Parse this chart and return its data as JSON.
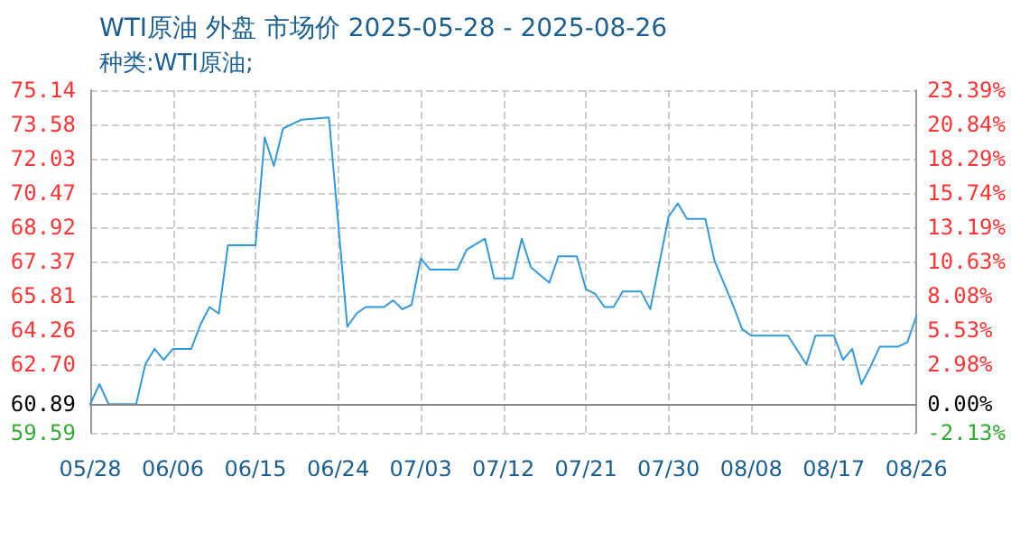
{
  "chart_data": {
    "type": "line",
    "title": "WTI原油 外盘 市场价 2025-05-28 - 2025-08-26",
    "subtitle": "种类:WTI原油;",
    "x": [
      "2025-05-28",
      "2025-05-29",
      "2025-05-30",
      "2025-06-02",
      "2025-06-03",
      "2025-06-04",
      "2025-06-05",
      "2025-06-06",
      "2025-06-08",
      "2025-06-09",
      "2025-06-10",
      "2025-06-11",
      "2025-06-12",
      "2025-06-15",
      "2025-06-16",
      "2025-06-17",
      "2025-06-18",
      "2025-06-19",
      "2025-06-20",
      "2025-06-23",
      "2025-06-25",
      "2025-06-26",
      "2025-06-27",
      "2025-06-29",
      "2025-06-30",
      "2025-07-01",
      "2025-07-02",
      "2025-07-03",
      "2025-07-04",
      "2025-07-07",
      "2025-07-08",
      "2025-07-10",
      "2025-07-11",
      "2025-07-13",
      "2025-07-14",
      "2025-07-15",
      "2025-07-17",
      "2025-07-18",
      "2025-07-20",
      "2025-07-21",
      "2025-07-22",
      "2025-07-23",
      "2025-07-24",
      "2025-07-25",
      "2025-07-27",
      "2025-07-28",
      "2025-07-30",
      "2025-07-31",
      "2025-08-01",
      "2025-08-03",
      "2025-08-04",
      "2025-08-06",
      "2025-08-07",
      "2025-08-08",
      "2025-08-12",
      "2025-08-14",
      "2025-08-15",
      "2025-08-17",
      "2025-08-18",
      "2025-08-19",
      "2025-08-20",
      "2025-08-21",
      "2025-08-22",
      "2025-08-24",
      "2025-08-25",
      "2025-08-26"
    ],
    "series": [
      {
        "color": "#3399dd",
        "values": [
          60.89,
          61.8,
          60.89,
          60.89,
          62.7,
          63.4,
          62.9,
          63.4,
          63.4,
          64.5,
          65.3,
          65.0,
          68.1,
          68.1,
          73.0,
          71.7,
          73.4,
          73.6,
          73.8,
          73.9,
          64.4,
          65.0,
          65.3,
          65.3,
          65.6,
          65.2,
          65.4,
          67.5,
          67.0,
          67.0,
          67.9,
          68.4,
          66.6,
          66.6,
          68.4,
          67.1,
          66.4,
          67.6,
          67.6,
          66.1,
          65.9,
          65.3,
          65.3,
          66.0,
          66.0,
          65.2,
          69.4,
          70.0,
          69.3,
          69.3,
          67.4,
          65.4,
          64.3,
          64.0,
          64.0,
          62.7,
          64.0,
          64.0,
          62.9,
          63.4,
          61.8,
          62.6,
          63.5,
          63.5,
          63.7,
          64.9
        ]
      }
    ],
    "xlim": [
      "2025-05-28",
      "2025-08-26"
    ],
    "xticks": [
      {
        "value": "2025-05-28",
        "label": "05/28"
      },
      {
        "value": "2025-06-06",
        "label": "06/06"
      },
      {
        "value": "2025-06-15",
        "label": "06/15"
      },
      {
        "value": "2025-06-24",
        "label": "06/24"
      },
      {
        "value": "2025-07-03",
        "label": "07/03"
      },
      {
        "value": "2025-07-12",
        "label": "07/12"
      },
      {
        "value": "2025-07-21",
        "label": "07/21"
      },
      {
        "value": "2025-07-30",
        "label": "07/30"
      },
      {
        "value": "2025-08-08",
        "label": "08/08"
      },
      {
        "value": "2025-08-17",
        "label": "08/17"
      },
      {
        "value": "2025-08-26",
        "label": "08/26"
      }
    ],
    "ylim": [
      59.59,
      75.14
    ],
    "yticks": [
      {
        "value": 59.59,
        "label": "59.59"
      },
      {
        "value": 60.89,
        "label": "60.89"
      },
      {
        "value": 62.7,
        "label": "62.70"
      },
      {
        "value": 64.26,
        "label": "64.26"
      },
      {
        "value": 65.81,
        "label": "65.81"
      },
      {
        "value": 67.37,
        "label": "67.37"
      },
      {
        "value": 68.92,
        "label": "68.92"
      },
      {
        "value": 70.47,
        "label": "70.47"
      },
      {
        "value": 72.03,
        "label": "72.03"
      },
      {
        "value": 73.58,
        "label": "73.58"
      },
      {
        "value": 75.14,
        "label": "75.14"
      }
    ],
    "y2lim": [
      -2.13,
      23.39
    ],
    "y2ticks": [
      {
        "value": -2.13,
        "label": "-2.13%"
      },
      {
        "value": 0,
        "label": "0.00%"
      },
      {
        "value": 2.98,
        "label": "2.98%"
      },
      {
        "value": 5.53,
        "label": "5.53%"
      },
      {
        "value": 8.08,
        "label": "8.08%"
      },
      {
        "value": 10.63,
        "label": "10.63%"
      },
      {
        "value": 13.19,
        "label": "13.19%"
      },
      {
        "value": 15.74,
        "label": "15.74%"
      },
      {
        "value": 18.29,
        "label": "18.29%"
      },
      {
        "value": 20.84,
        "label": "20.84%"
      },
      {
        "value": 23.39,
        "label": "23.39%"
      }
    ],
    "ref_lines": [
      {
        "axis": "y",
        "value": 60.89,
        "color": "#888888"
      }
    ],
    "grid": true,
    "marker": "none",
    "line_style": "solid"
  }
}
